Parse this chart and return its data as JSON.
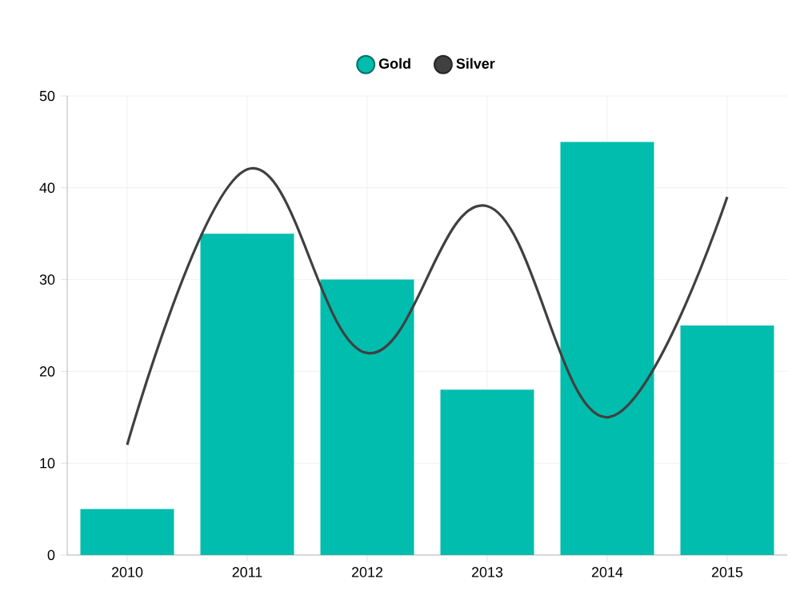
{
  "chart_data": {
    "type": "bar",
    "categories": [
      "2010",
      "2011",
      "2012",
      "2013",
      "2014",
      "2015"
    ],
    "series": [
      {
        "name": "Gold",
        "color": "#00bdae",
        "values": [
          5,
          35,
          30,
          18,
          45,
          25
        ]
      },
      {
        "name": "Silver",
        "type": "line",
        "color": "#404041",
        "values": [
          12,
          42,
          22,
          38,
          15,
          39
        ]
      }
    ],
    "ylim": [
      0,
      50
    ],
    "yticks": [
      0,
      10,
      20,
      30,
      40,
      50
    ],
    "grid": true,
    "legend": "top"
  }
}
